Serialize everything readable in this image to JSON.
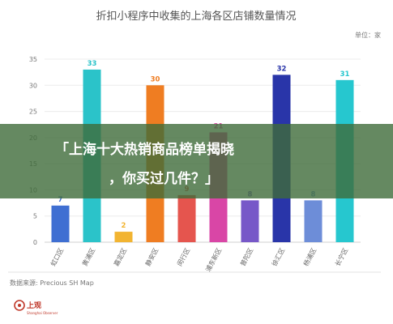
{
  "chart_data": {
    "type": "bar",
    "title": "折扣小程序中收集的上海各区店铺数量情况",
    "unit_label": "单位：家",
    "categories": [
      "虹口区",
      "黄浦区",
      "嘉定区",
      "静安区",
      "闵行区",
      "浦东新区",
      "普陀区",
      "徐汇区",
      "杨浦区",
      "长宁区"
    ],
    "values": [
      7,
      33,
      2,
      30,
      9,
      21,
      8,
      32,
      8,
      31
    ],
    "colors": [
      "#3f6fd2",
      "#2bc3c9",
      "#f2b431",
      "#ef7d22",
      "#e5554e",
      "#d946a6",
      "#7758c8",
      "#2935a9",
      "#6d8dd8",
      "#26c7cf"
    ],
    "ylim": [
      0,
      35
    ],
    "yticks": [
      0,
      5,
      10,
      15,
      20,
      25,
      30,
      35
    ],
    "grid": true,
    "source": "数据来源: Precious SH Map"
  },
  "overlay": {
    "banner_line1": "「上海十大热销商品榜单揭晓",
    "banner_line2": "，你买过几件？」"
  },
  "logo": {
    "name": "上观",
    "subtitle": "Shanghai Observer"
  }
}
